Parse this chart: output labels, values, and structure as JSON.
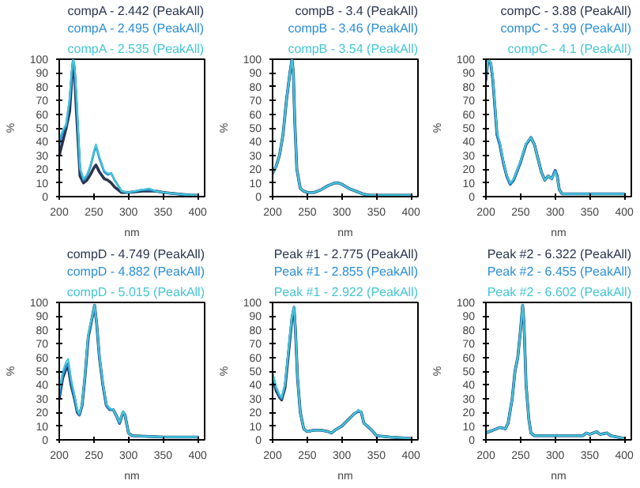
{
  "chart_data": [
    {
      "type": "line",
      "xlabel": "nm",
      "ylabel": "%",
      "xlim": [
        200,
        410
      ],
      "ylim": [
        0,
        100
      ],
      "xticks": [
        200,
        250,
        300,
        350,
        400
      ],
      "yticks": [
        0,
        10,
        20,
        30,
        40,
        50,
        60,
        70,
        80,
        90,
        100
      ],
      "grid": false,
      "legend": "top",
      "marker": "none",
      "line_style": "solid",
      "x": [
        200,
        205,
        210,
        215,
        218,
        220,
        222,
        225,
        230,
        235,
        240,
        245,
        250,
        253,
        258,
        265,
        270,
        275,
        280,
        290,
        300,
        320,
        330,
        340,
        350,
        370,
        390,
        400
      ],
      "series": [
        {
          "name": "compA - 2.442 (PeakAll)",
          "color": "#2a3550",
          "values": [
            30,
            40,
            50,
            62,
            85,
            97,
            90,
            60,
            15,
            10,
            12,
            16,
            21,
            23,
            18,
            13,
            12,
            10,
            7,
            3,
            3,
            4,
            4,
            4,
            3,
            2,
            1,
            1
          ]
        },
        {
          "name": "compA - 2.495 (PeakAll)",
          "color": "#2b8fd8",
          "values": [
            38,
            47,
            52,
            70,
            90,
            100,
            95,
            70,
            20,
            12,
            15,
            22,
            32,
            37,
            28,
            18,
            16,
            17,
            12,
            4,
            3,
            5,
            5,
            4,
            3,
            2,
            1,
            1
          ]
        },
        {
          "name": "compA - 2.535 (PeakAll)",
          "color": "#45c6d6",
          "values": [
            42,
            48,
            53,
            72,
            91,
            100,
            96,
            72,
            21,
            13,
            16,
            23,
            33,
            38,
            29,
            19,
            17,
            17,
            12,
            4,
            3,
            5,
            6,
            4,
            3,
            2,
            1,
            1
          ]
        }
      ]
    },
    {
      "type": "line",
      "xlabel": "nm",
      "ylabel": "%",
      "xlim": [
        200,
        410
      ],
      "ylim": [
        0,
        100
      ],
      "xticks": [
        200,
        250,
        300,
        350,
        400
      ],
      "yticks": [
        0,
        10,
        20,
        30,
        40,
        50,
        60,
        70,
        80,
        90,
        100
      ],
      "grid": false,
      "legend": "top",
      "marker": "none",
      "line_style": "solid",
      "x": [
        200,
        205,
        210,
        215,
        220,
        225,
        228,
        230,
        232,
        235,
        240,
        245,
        250,
        260,
        270,
        280,
        290,
        295,
        300,
        310,
        320,
        330,
        340,
        360,
        400
      ],
      "series": [
        {
          "name": "compB - 3.4 (PeakAll)",
          "color": "#2a3550",
          "values": [
            17,
            22,
            30,
            45,
            70,
            90,
            100,
            90,
            55,
            20,
            6,
            4,
            3,
            3,
            5,
            8,
            10,
            10,
            9,
            6,
            4,
            2,
            1,
            1,
            1
          ]
        },
        {
          "name": "compB - 3.46 (PeakAll)",
          "color": "#2b8fd8",
          "values": [
            17,
            22,
            30,
            45,
            70,
            90,
            100,
            90,
            55,
            20,
            6,
            4,
            3,
            3,
            5,
            8,
            10,
            10,
            9,
            6,
            4,
            2,
            1,
            1,
            1
          ]
        },
        {
          "name": "compB - 3.54 (PeakAll)",
          "color": "#45c6d6",
          "values": [
            17,
            22,
            30,
            45,
            70,
            90,
            100,
            90,
            55,
            20,
            6,
            4,
            3,
            3,
            5,
            8,
            10,
            10,
            9,
            6,
            4,
            2,
            1,
            1,
            1
          ]
        }
      ]
    },
    {
      "type": "line",
      "xlabel": "nm",
      "ylabel": "%",
      "xlim": [
        200,
        410
      ],
      "ylim": [
        0,
        100
      ],
      "xticks": [
        200,
        250,
        300,
        350,
        400
      ],
      "yticks": [
        0,
        10,
        20,
        30,
        40,
        50,
        60,
        70,
        80,
        90,
        100
      ],
      "grid": false,
      "legend": "top",
      "marker": "none",
      "line_style": "solid",
      "x": [
        200,
        203,
        207,
        210,
        213,
        216,
        220,
        225,
        230,
        235,
        240,
        250,
        258,
        265,
        270,
        275,
        280,
        285,
        290,
        295,
        300,
        303,
        306,
        310,
        320,
        350,
        400
      ],
      "series": [
        {
          "name": "compC - 3.88 (PeakAll)",
          "color": "#2a3550",
          "values": [
            85,
            100,
            97,
            85,
            65,
            45,
            38,
            25,
            15,
            9,
            12,
            25,
            38,
            43,
            38,
            28,
            18,
            12,
            15,
            13,
            19,
            15,
            5,
            2,
            2,
            2,
            2
          ]
        },
        {
          "name": "compC - 3.99 (PeakAll)",
          "color": "#2b8fd8",
          "values": [
            85,
            100,
            97,
            85,
            65,
            45,
            38,
            25,
            15,
            9,
            12,
            25,
            38,
            43,
            38,
            28,
            18,
            12,
            15,
            13,
            19,
            15,
            5,
            2,
            2,
            2,
            2
          ]
        },
        {
          "name": "compC - 4.1 (PeakAll)",
          "color": "#45c6d6",
          "values": [
            88,
            100,
            98,
            88,
            68,
            47,
            40,
            26,
            16,
            10,
            13,
            26,
            39,
            43,
            38,
            28,
            18,
            12,
            15,
            13,
            18,
            14,
            5,
            2,
            2,
            2,
            2
          ]
        }
      ]
    },
    {
      "type": "line",
      "xlabel": "nm",
      "ylabel": "%",
      "xlim": [
        200,
        410
      ],
      "ylim": [
        0,
        100
      ],
      "xticks": [
        200,
        250,
        300,
        350,
        400
      ],
      "yticks": [
        0,
        10,
        20,
        30,
        40,
        50,
        60,
        70,
        80,
        90,
        100
      ],
      "grid": false,
      "legend": "top",
      "marker": "none",
      "line_style": "solid",
      "x": [
        200,
        205,
        210,
        213,
        217,
        222,
        226,
        229,
        233,
        237,
        242,
        248,
        251,
        254,
        258,
        263,
        268,
        273,
        278,
        283,
        287,
        292,
        295,
        300,
        305,
        350,
        400
      ],
      "series": [
        {
          "name": "compD - 4.749 (PeakAll)",
          "color": "#2a3550",
          "values": [
            30,
            45,
            52,
            53,
            40,
            30,
            20,
            18,
            25,
            45,
            75,
            90,
            98,
            85,
            60,
            40,
            25,
            22,
            22,
            17,
            12,
            20,
            18,
            5,
            3,
            2,
            2
          ]
        },
        {
          "name": "compD - 4.882 (PeakAll)",
          "color": "#2b8fd8",
          "values": [
            32,
            47,
            54,
            56,
            42,
            31,
            21,
            18,
            25,
            45,
            76,
            90,
            98,
            85,
            60,
            40,
            25,
            22,
            22,
            17,
            12,
            20,
            18,
            5,
            3,
            2,
            2
          ]
        },
        {
          "name": "compD - 5.015 (PeakAll)",
          "color": "#45c6d6",
          "values": [
            35,
            50,
            57,
            59,
            45,
            33,
            22,
            19,
            26,
            47,
            78,
            91,
            98,
            86,
            62,
            42,
            26,
            23,
            22,
            17,
            13,
            21,
            18,
            5,
            3,
            2,
            2
          ]
        }
      ]
    },
    {
      "type": "line",
      "xlabel": "nm",
      "ylabel": "%",
      "xlim": [
        200,
        410
      ],
      "ylim": [
        0,
        100
      ],
      "xticks": [
        200,
        250,
        300,
        350,
        400
      ],
      "yticks": [
        0,
        10,
        20,
        30,
        40,
        50,
        60,
        70,
        80,
        90,
        100
      ],
      "grid": false,
      "legend": "top",
      "marker": "none",
      "line_style": "solid",
      "x": [
        200,
        205,
        210,
        213,
        218,
        223,
        228,
        231,
        233,
        236,
        240,
        245,
        250,
        260,
        270,
        280,
        285,
        290,
        300,
        310,
        318,
        324,
        328,
        332,
        337,
        345,
        350,
        370,
        400
      ],
      "series": [
        {
          "name": "Peak #1 - 2.775 (PeakAll)",
          "color": "#2a3550",
          "values": [
            46,
            36,
            31,
            29,
            38,
            63,
            88,
            96,
            80,
            45,
            20,
            8,
            6,
            7,
            7,
            6,
            5,
            7,
            10,
            15,
            19,
            21,
            20,
            12,
            10,
            6,
            3,
            2,
            1
          ]
        },
        {
          "name": "Peak #1 - 2.855 (PeakAll)",
          "color": "#2b8fd8",
          "values": [
            48,
            38,
            32,
            30,
            40,
            65,
            90,
            97,
            80,
            45,
            20,
            8,
            6,
            7,
            7,
            6,
            5,
            7,
            10,
            15,
            19,
            21,
            20,
            12,
            10,
            6,
            3,
            2,
            1
          ]
        },
        {
          "name": "Peak #1 - 2.922 (PeakAll)",
          "color": "#45c6d6",
          "values": [
            49,
            39,
            33,
            31,
            41,
            66,
            90,
            97,
            81,
            46,
            20,
            8,
            6,
            7,
            7,
            6,
            5,
            7,
            10,
            15,
            19,
            22,
            20,
            12,
            10,
            6,
            3,
            2,
            1
          ]
        }
      ]
    },
    {
      "type": "line",
      "xlabel": "nm",
      "ylabel": "%",
      "xlim": [
        200,
        410
      ],
      "ylim": [
        0,
        100
      ],
      "xticks": [
        200,
        250,
        300,
        350,
        400
      ],
      "yticks": [
        0,
        10,
        20,
        30,
        40,
        50,
        60,
        70,
        80,
        90,
        100
      ],
      "grid": false,
      "legend": "top",
      "marker": "none",
      "line_style": "solid",
      "x": [
        200,
        210,
        220,
        228,
        232,
        238,
        242,
        246,
        250,
        253,
        255,
        258,
        262,
        265,
        270,
        300,
        340,
        345,
        350,
        360,
        365,
        375,
        380,
        400
      ],
      "series": [
        {
          "name": "Peak #2 - 6.322 (PeakAll)",
          "color": "#2a3550",
          "values": [
            5,
            7,
            9,
            8,
            12,
            30,
            50,
            60,
            80,
            98,
            85,
            40,
            15,
            5,
            3,
            3,
            3,
            5,
            4,
            6,
            4,
            5,
            3,
            1
          ]
        },
        {
          "name": "Peak #2 - 6.455 (PeakAll)",
          "color": "#2b8fd8",
          "values": [
            5,
            7,
            9,
            8,
            12,
            30,
            50,
            60,
            80,
            98,
            85,
            40,
            15,
            5,
            3,
            3,
            3,
            5,
            4,
            6,
            4,
            5,
            3,
            1
          ]
        },
        {
          "name": "Peak #2 - 6.602 (PeakAll)",
          "color": "#45c6d6",
          "values": [
            5,
            7,
            9,
            8,
            12,
            30,
            50,
            60,
            80,
            98,
            85,
            40,
            15,
            5,
            3,
            3,
            3,
            5,
            4,
            6,
            4,
            5,
            3,
            1
          ]
        }
      ]
    }
  ]
}
